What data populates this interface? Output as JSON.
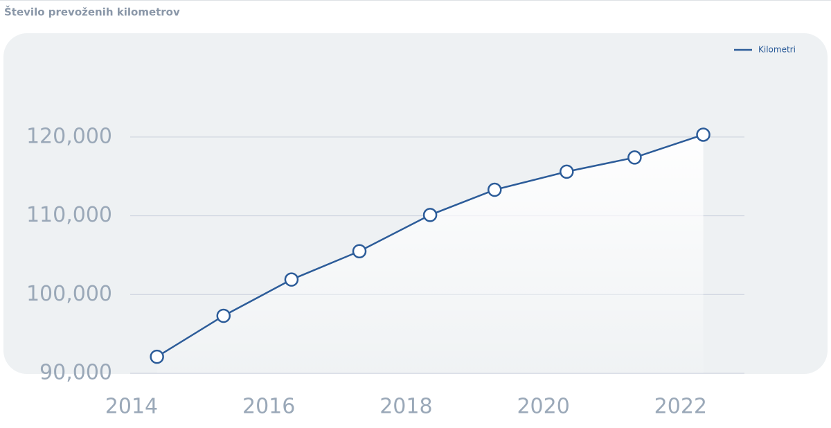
{
  "chart_data": {
    "type": "line",
    "title": "Število prevoženih kilometrov",
    "x": [
      2014.37,
      2015.34,
      2016.33,
      2017.32,
      2018.35,
      2019.29,
      2020.34,
      2021.33,
      2022.33
    ],
    "series": [
      {
        "name": "Kilometri",
        "color": "#2c5c99",
        "values": [
          92100,
          97300,
          101900,
          105500,
          110100,
          113300,
          115600,
          117400,
          120300
        ]
      }
    ],
    "xlim": [
      2013.98,
      2022.93
    ],
    "xticks": [
      2014,
      2016,
      2018,
      2020,
      2022
    ],
    "ylim": [
      90000,
      125000
    ],
    "yticks": [
      {
        "value": 90000,
        "label": "90,000"
      },
      {
        "value": 100000,
        "label": "100,000"
      },
      {
        "value": 110000,
        "label": "110,000"
      },
      {
        "value": 120000,
        "label": "120,000"
      }
    ],
    "grid": true,
    "legend": "top-right"
  }
}
